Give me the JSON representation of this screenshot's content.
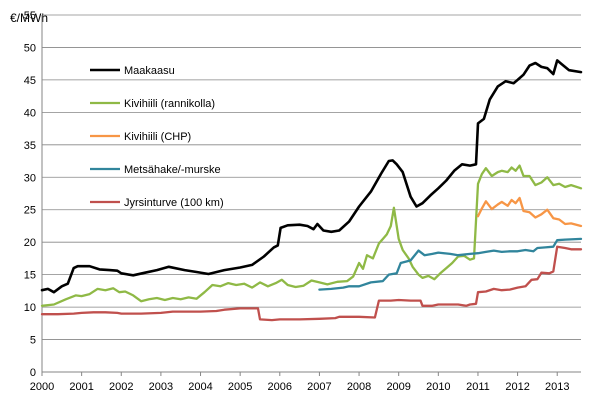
{
  "chart_data": {
    "type": "line",
    "title": "",
    "ylabel": "€/MWh",
    "xlabel": "",
    "xlim": [
      2000,
      2013.6
    ],
    "ylim": [
      0,
      55
    ],
    "y_ticks": [
      0,
      5,
      10,
      15,
      20,
      25,
      30,
      35,
      40,
      45,
      50,
      55
    ],
    "x_ticks": [
      2000,
      2001,
      2002,
      2003,
      2004,
      2005,
      2006,
      2007,
      2008,
      2009,
      2010,
      2011,
      2012,
      2013
    ],
    "x_tick_labels": [
      "2000",
      "2001",
      "2002",
      "2003",
      "2004",
      "2005",
      "2006",
      "2007",
      "2008",
      "2009",
      "2010",
      "2011",
      "2012",
      "2013"
    ],
    "grid": "horizontal",
    "legend_position": "top-left",
    "series": [
      {
        "name": "Maakaasu",
        "color": "#000000",
        "points": [
          [
            2000.0,
            12.6
          ],
          [
            2000.15,
            12.8
          ],
          [
            2000.3,
            12.3
          ],
          [
            2000.5,
            13.2
          ],
          [
            2000.65,
            13.6
          ],
          [
            2000.8,
            16.0
          ],
          [
            2000.9,
            16.3
          ],
          [
            2001.2,
            16.3
          ],
          [
            2001.45,
            15.8
          ],
          [
            2001.7,
            15.7
          ],
          [
            2001.9,
            15.6
          ],
          [
            2002.0,
            15.2
          ],
          [
            2002.3,
            14.9
          ],
          [
            2002.6,
            15.3
          ],
          [
            2002.9,
            15.7
          ],
          [
            2003.2,
            16.2
          ],
          [
            2003.6,
            15.7
          ],
          [
            2003.9,
            15.4
          ],
          [
            2004.2,
            15.1
          ],
          [
            2004.6,
            15.7
          ],
          [
            2005.0,
            16.1
          ],
          [
            2005.3,
            16.5
          ],
          [
            2005.6,
            17.8
          ],
          [
            2005.85,
            19.2
          ],
          [
            2005.95,
            19.5
          ],
          [
            2006.02,
            22.2
          ],
          [
            2006.2,
            22.6
          ],
          [
            2006.5,
            22.7
          ],
          [
            2006.7,
            22.5
          ],
          [
            2006.85,
            22.0
          ],
          [
            2006.95,
            22.8
          ],
          [
            2007.1,
            21.8
          ],
          [
            2007.3,
            21.6
          ],
          [
            2007.5,
            21.8
          ],
          [
            2007.75,
            23.2
          ],
          [
            2008.0,
            25.5
          ],
          [
            2008.3,
            27.8
          ],
          [
            2008.55,
            30.5
          ],
          [
            2008.75,
            32.5
          ],
          [
            2008.85,
            32.6
          ],
          [
            2008.95,
            32.0
          ],
          [
            2009.1,
            30.8
          ],
          [
            2009.3,
            27.0
          ],
          [
            2009.45,
            25.5
          ],
          [
            2009.6,
            26.0
          ],
          [
            2009.8,
            27.2
          ],
          [
            2010.0,
            28.3
          ],
          [
            2010.2,
            29.5
          ],
          [
            2010.4,
            31.0
          ],
          [
            2010.6,
            32.0
          ],
          [
            2010.8,
            31.8
          ],
          [
            2010.95,
            32.0
          ],
          [
            2011.0,
            38.3
          ],
          [
            2011.15,
            39.0
          ],
          [
            2011.3,
            42.0
          ],
          [
            2011.5,
            44.0
          ],
          [
            2011.7,
            44.8
          ],
          [
            2011.9,
            44.5
          ],
          [
            2012.0,
            45.0
          ],
          [
            2012.15,
            45.8
          ],
          [
            2012.3,
            47.2
          ],
          [
            2012.45,
            47.6
          ],
          [
            2012.6,
            47.0
          ],
          [
            2012.75,
            46.8
          ],
          [
            2012.9,
            45.9
          ],
          [
            2013.0,
            48.0
          ],
          [
            2013.1,
            47.5
          ],
          [
            2013.3,
            46.5
          ],
          [
            2013.6,
            46.2
          ]
        ]
      },
      {
        "name": "Kivihiili (rannikolla)",
        "color": "#8fb946",
        "points": [
          [
            2000.0,
            10.2
          ],
          [
            2000.3,
            10.4
          ],
          [
            2000.6,
            11.2
          ],
          [
            2000.85,
            11.8
          ],
          [
            2001.0,
            11.7
          ],
          [
            2001.2,
            12.0
          ],
          [
            2001.4,
            12.8
          ],
          [
            2001.6,
            12.6
          ],
          [
            2001.8,
            12.9
          ],
          [
            2001.95,
            12.3
          ],
          [
            2002.1,
            12.4
          ],
          [
            2002.3,
            11.8
          ],
          [
            2002.5,
            10.9
          ],
          [
            2002.7,
            11.2
          ],
          [
            2002.9,
            11.4
          ],
          [
            2003.1,
            11.1
          ],
          [
            2003.3,
            11.4
          ],
          [
            2003.5,
            11.2
          ],
          [
            2003.7,
            11.5
          ],
          [
            2003.9,
            11.3
          ],
          [
            2004.1,
            12.3
          ],
          [
            2004.3,
            13.4
          ],
          [
            2004.5,
            13.2
          ],
          [
            2004.7,
            13.7
          ],
          [
            2004.9,
            13.4
          ],
          [
            2005.1,
            13.6
          ],
          [
            2005.3,
            13.0
          ],
          [
            2005.5,
            13.8
          ],
          [
            2005.7,
            13.2
          ],
          [
            2005.9,
            13.7
          ],
          [
            2006.05,
            14.2
          ],
          [
            2006.2,
            13.4
          ],
          [
            2006.4,
            13.1
          ],
          [
            2006.6,
            13.3
          ],
          [
            2006.8,
            14.1
          ],
          [
            2007.0,
            13.8
          ],
          [
            2007.2,
            13.5
          ],
          [
            2007.45,
            13.9
          ],
          [
            2007.7,
            14.0
          ],
          [
            2007.85,
            14.7
          ],
          [
            2008.0,
            16.8
          ],
          [
            2008.1,
            15.9
          ],
          [
            2008.2,
            18.0
          ],
          [
            2008.35,
            17.5
          ],
          [
            2008.5,
            19.8
          ],
          [
            2008.7,
            21.2
          ],
          [
            2008.8,
            22.5
          ],
          [
            2008.88,
            25.3
          ],
          [
            2009.0,
            20.5
          ],
          [
            2009.1,
            18.8
          ],
          [
            2009.25,
            17.5
          ],
          [
            2009.35,
            16.2
          ],
          [
            2009.5,
            15.0
          ],
          [
            2009.6,
            14.5
          ],
          [
            2009.75,
            14.8
          ],
          [
            2009.9,
            14.3
          ],
          [
            2010.05,
            15.2
          ],
          [
            2010.2,
            16.0
          ],
          [
            2010.35,
            16.8
          ],
          [
            2010.5,
            17.8
          ],
          [
            2010.65,
            17.9
          ],
          [
            2010.8,
            17.3
          ],
          [
            2010.9,
            17.5
          ],
          [
            2011.0,
            29.0
          ],
          [
            2011.1,
            30.5
          ],
          [
            2011.2,
            31.4
          ],
          [
            2011.35,
            30.2
          ],
          [
            2011.5,
            30.8
          ],
          [
            2011.6,
            31.0
          ],
          [
            2011.75,
            30.8
          ],
          [
            2011.85,
            31.5
          ],
          [
            2011.95,
            31.0
          ],
          [
            2012.05,
            31.8
          ],
          [
            2012.15,
            30.2
          ],
          [
            2012.3,
            30.2
          ],
          [
            2012.45,
            28.8
          ],
          [
            2012.6,
            29.2
          ],
          [
            2012.75,
            30.0
          ],
          [
            2012.9,
            28.8
          ],
          [
            2013.05,
            29.0
          ],
          [
            2013.2,
            28.5
          ],
          [
            2013.35,
            28.8
          ],
          [
            2013.6,
            28.3
          ]
        ]
      },
      {
        "name": "Kivihiili (CHP)",
        "color": "#f79646",
        "points": [
          [
            2011.0,
            24.0
          ],
          [
            2011.1,
            25.2
          ],
          [
            2011.2,
            26.3
          ],
          [
            2011.35,
            25.1
          ],
          [
            2011.5,
            25.8
          ],
          [
            2011.6,
            26.2
          ],
          [
            2011.75,
            25.6
          ],
          [
            2011.85,
            26.5
          ],
          [
            2011.95,
            26.0
          ],
          [
            2012.05,
            26.8
          ],
          [
            2012.15,
            24.8
          ],
          [
            2012.3,
            24.6
          ],
          [
            2012.45,
            23.8
          ],
          [
            2012.6,
            24.3
          ],
          [
            2012.75,
            25.0
          ],
          [
            2012.9,
            23.7
          ],
          [
            2013.05,
            23.5
          ],
          [
            2013.2,
            22.8
          ],
          [
            2013.35,
            22.9
          ],
          [
            2013.6,
            22.5
          ]
        ]
      },
      {
        "name": "Metsähake/-murske",
        "color": "#31859c",
        "points": [
          [
            2007.0,
            12.7
          ],
          [
            2007.3,
            12.8
          ],
          [
            2007.6,
            13.0
          ],
          [
            2007.75,
            13.2
          ],
          [
            2008.0,
            13.2
          ],
          [
            2008.3,
            13.8
          ],
          [
            2008.6,
            14.0
          ],
          [
            2008.75,
            15.0
          ],
          [
            2008.95,
            15.2
          ],
          [
            2009.05,
            16.8
          ],
          [
            2009.3,
            17.2
          ],
          [
            2009.5,
            18.7
          ],
          [
            2009.65,
            18.0
          ],
          [
            2009.85,
            18.2
          ],
          [
            2010.0,
            18.4
          ],
          [
            2010.3,
            18.2
          ],
          [
            2010.5,
            18.0
          ],
          [
            2010.8,
            18.2
          ],
          [
            2011.0,
            18.3
          ],
          [
            2011.2,
            18.5
          ],
          [
            2011.4,
            18.7
          ],
          [
            2011.6,
            18.5
          ],
          [
            2011.8,
            18.6
          ],
          [
            2012.0,
            18.6
          ],
          [
            2012.2,
            18.8
          ],
          [
            2012.4,
            18.6
          ],
          [
            2012.5,
            19.1
          ],
          [
            2012.7,
            19.2
          ],
          [
            2012.9,
            19.3
          ],
          [
            2013.0,
            20.3
          ],
          [
            2013.2,
            20.4
          ],
          [
            2013.6,
            20.5
          ]
        ]
      },
      {
        "name": "Jyrsinturve (100 km)",
        "color": "#c0504d",
        "points": [
          [
            2000.0,
            8.9
          ],
          [
            2000.4,
            8.9
          ],
          [
            2000.8,
            9.0
          ],
          [
            2001.0,
            9.1
          ],
          [
            2001.3,
            9.2
          ],
          [
            2001.6,
            9.2
          ],
          [
            2001.9,
            9.1
          ],
          [
            2002.0,
            9.0
          ],
          [
            2002.5,
            9.0
          ],
          [
            2003.0,
            9.1
          ],
          [
            2003.3,
            9.3
          ],
          [
            2003.6,
            9.3
          ],
          [
            2004.0,
            9.3
          ],
          [
            2004.4,
            9.4
          ],
          [
            2004.6,
            9.6
          ],
          [
            2005.0,
            9.8
          ],
          [
            2005.45,
            9.8
          ],
          [
            2005.5,
            8.1
          ],
          [
            2005.8,
            8.0
          ],
          [
            2006.0,
            8.1
          ],
          [
            2006.5,
            8.1
          ],
          [
            2007.0,
            8.2
          ],
          [
            2007.4,
            8.3
          ],
          [
            2007.5,
            8.5
          ],
          [
            2008.0,
            8.5
          ],
          [
            2008.4,
            8.4
          ],
          [
            2008.5,
            11.0
          ],
          [
            2008.8,
            11.0
          ],
          [
            2009.0,
            11.1
          ],
          [
            2009.3,
            11.0
          ],
          [
            2009.55,
            11.0
          ],
          [
            2009.6,
            10.2
          ],
          [
            2009.85,
            10.2
          ],
          [
            2010.0,
            10.4
          ],
          [
            2010.5,
            10.4
          ],
          [
            2010.7,
            10.2
          ],
          [
            2010.8,
            10.4
          ],
          [
            2010.95,
            10.5
          ],
          [
            2011.0,
            12.3
          ],
          [
            2011.2,
            12.4
          ],
          [
            2011.4,
            12.8
          ],
          [
            2011.6,
            12.6
          ],
          [
            2011.8,
            12.7
          ],
          [
            2012.0,
            13.0
          ],
          [
            2012.2,
            13.2
          ],
          [
            2012.35,
            14.2
          ],
          [
            2012.5,
            14.3
          ],
          [
            2012.6,
            15.3
          ],
          [
            2012.8,
            15.2
          ],
          [
            2012.9,
            15.5
          ],
          [
            2013.0,
            19.3
          ],
          [
            2013.2,
            19.1
          ],
          [
            2013.35,
            18.9
          ],
          [
            2013.6,
            18.9
          ]
        ]
      }
    ]
  }
}
